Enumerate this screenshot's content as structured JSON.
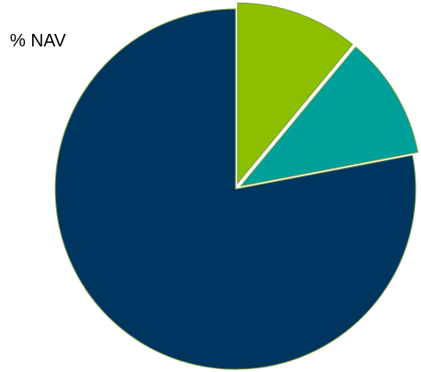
{
  "chart_data": {
    "type": "pie",
    "title": "% NAV",
    "values": [
      11,
      11,
      78
    ],
    "colors": [
      "#8cbf00",
      "#00a09a",
      "#003560"
    ],
    "start": "12 o'clock",
    "direction": "clockwise",
    "exploded_slices": [
      0,
      1
    ],
    "legend": "none"
  }
}
